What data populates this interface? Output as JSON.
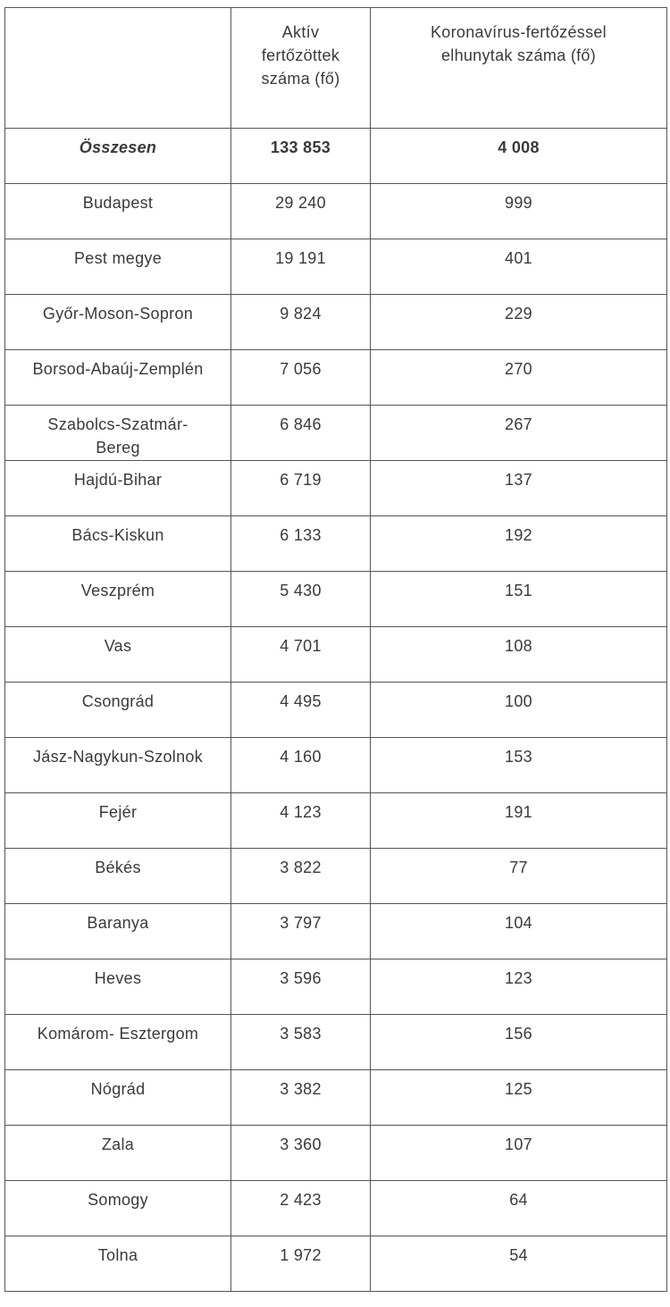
{
  "table": {
    "columns": [
      "Aktív fertőzöttek száma (fő)",
      "Koronavírus-fertőzéssel elhunytak száma (fő)"
    ],
    "rows": [
      [
        "Összesen",
        "133 853",
        "4 008"
      ],
      [
        "Budapest",
        "29 240",
        "999"
      ],
      [
        "Pest megye",
        "19 191",
        "401"
      ],
      [
        "Győr-Moson-Sopron",
        "9 824",
        "229"
      ],
      [
        "Borsod-Abaúj-Zemplén",
        "7 056",
        "270"
      ],
      [
        "Szabolcs-Szatmár-Bereg",
        "6 846",
        "267"
      ],
      [
        "Hajdú-Bihar",
        "6 719",
        "137"
      ],
      [
        "Bács-Kiskun",
        "6 133",
        "192"
      ],
      [
        "Veszprém",
        "5 430",
        "151"
      ],
      [
        "Vas",
        "4 701",
        "108"
      ],
      [
        "Csongrád",
        "4 495",
        "100"
      ],
      [
        "Jász-Nagykun-Szolnok",
        "4 160",
        "153"
      ],
      [
        "Fejér",
        "4 123",
        "191"
      ],
      [
        "Békés",
        "3 822",
        "77"
      ],
      [
        "Baranya",
        "3 797",
        "104"
      ],
      [
        "Heves",
        "3 596",
        "123"
      ],
      [
        "Komárom- Esztergom",
        "3 583",
        "156"
      ],
      [
        "Nógrád",
        "3 382",
        "125"
      ],
      [
        "Zala",
        "3 360",
        "107"
      ],
      [
        "Somogy",
        "2 423",
        "64"
      ],
      [
        "Tolna",
        "1 972",
        "54"
      ]
    ]
  }
}
